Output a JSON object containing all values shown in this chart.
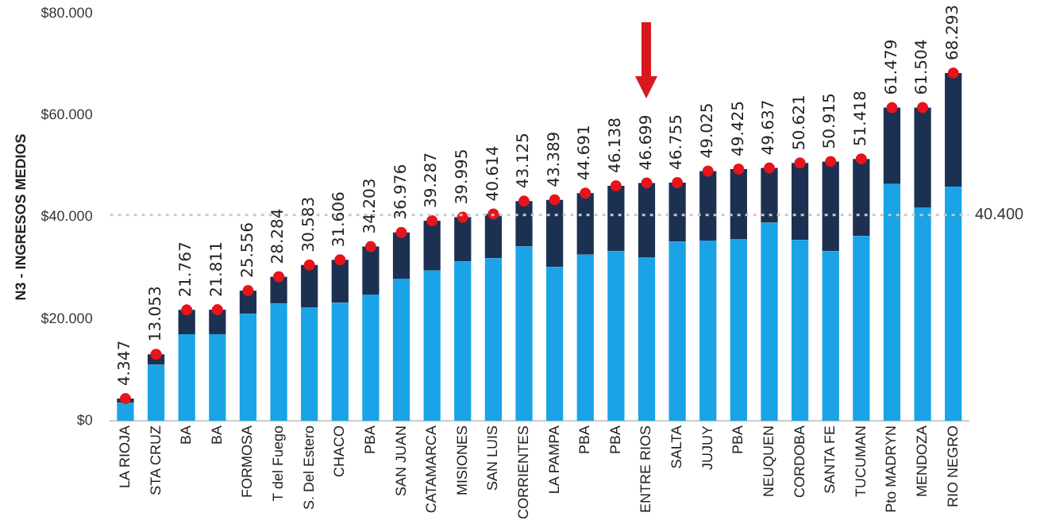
{
  "chart_data": {
    "type": "bar",
    "stacked": true,
    "ylabel": "N3 - INGRESOS MEDIOS",
    "categories": [
      "LA RIOJA",
      "STA CRUZ",
      "BA",
      "BA",
      "FORMOSA",
      "T del Fuego",
      "S. Del Estero",
      "CHACO",
      "PBA",
      "SAN JUAN",
      "CATAMARCA",
      "MISIONES",
      "SAN LUIS",
      "CORRIENTES",
      "LA PAMPA",
      "PBA",
      "PBA",
      "ENTRE RIOS",
      "SALTA",
      "JUJUY",
      "PBA",
      "NEUQUEN",
      "CORDOBA",
      "SANTA FE",
      "TUCUMAN",
      "Pto MADRYN",
      "MENDOZA",
      "RIO NEGRO"
    ],
    "series": [
      {
        "color": "#1aa3e6",
        "values": [
          3500,
          11000,
          17000,
          17000,
          21000,
          23000,
          22300,
          23200,
          24800,
          27900,
          29500,
          31300,
          31900,
          34200,
          30200,
          32600,
          33300,
          32100,
          35200,
          35400,
          35700,
          38900,
          35500,
          33300,
          36300,
          46500,
          41800,
          46000
        ]
      },
      {
        "color": "#1c3152",
        "values": [
          847,
          2053,
          4767,
          4811,
          4556,
          5284,
          8283,
          8406,
          9403,
          9076,
          9787,
          8695,
          8714,
          8925,
          13189,
          12091,
          12838,
          14599,
          11555,
          13625,
          13725,
          10737,
          15121,
          17615,
          15118,
          14979,
          19704,
          22293
        ]
      },
      {
        "type": "scatter",
        "color": "#e8141b",
        "marker": "circle",
        "values": [
          4347,
          13053,
          21767,
          21811,
          25556,
          28284,
          30583,
          31606,
          34203,
          36976,
          39287,
          39995,
          40614,
          43125,
          43389,
          44691,
          46138,
          46699,
          46755,
          49025,
          49425,
          49637,
          50621,
          50915,
          51418,
          61479,
          61504,
          68293
        ]
      }
    ],
    "totals": [
      "4.347",
      "13.053",
      "21.767",
      "21.811",
      "25.556",
      "28.284",
      "30.583",
      "31.606",
      "34.203",
      "36.976",
      "39.287",
      "39.995",
      "40.614",
      "43.125",
      "43.389",
      "44.691",
      "46.138",
      "46.699",
      "46.755",
      "49.025",
      "49.425",
      "49.637",
      "50.621",
      "50.915",
      "51.418",
      "61.479",
      "61.504",
      "68.293"
    ],
    "ylim": [
      0,
      80000
    ],
    "yticks": [
      {
        "value": 0,
        "label": "$0"
      },
      {
        "value": 20000,
        "label": "$20.000"
      },
      {
        "value": 40000,
        "label": "$40.000"
      },
      {
        "value": 60000,
        "label": "$60.000"
      },
      {
        "value": 80000,
        "label": "$80.000"
      }
    ],
    "ref_lines": [
      {
        "axis": "y",
        "value": 40400,
        "label": "40.400",
        "color": "#c8c8c8",
        "line_style": "dotted"
      }
    ],
    "grid": false,
    "legend": false
  }
}
